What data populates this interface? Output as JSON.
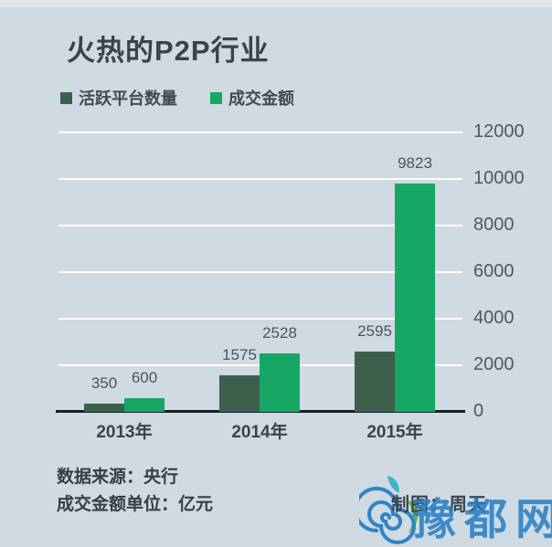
{
  "title": "火热的P2P行业",
  "legend": [
    {
      "label": "活跃平台数量",
      "color": "#3d5f4c"
    },
    {
      "label": "成交金额",
      "color": "#16a765"
    }
  ],
  "chart_data": {
    "type": "bar",
    "title": "火热的P2P行业",
    "categories": [
      "2013年",
      "2014年",
      "2015年"
    ],
    "series": [
      {
        "name": "活跃平台数量",
        "color": "#3d5f4c",
        "values": [
          350,
          1575,
          2595
        ]
      },
      {
        "name": "成交金额",
        "color": "#16a765",
        "values": [
          600,
          2528,
          9823
        ]
      }
    ],
    "ylim": [
      0,
      12000
    ],
    "yticks": [
      0,
      2000,
      4000,
      6000,
      8000,
      10000,
      12000
    ],
    "y_axis_side": "right",
    "grid": true,
    "gridline_color": "#ffffff",
    "axis_color": "#16202c",
    "legend_position": "top-left",
    "data_labels": true
  },
  "footer": {
    "source": "数据来源：央行",
    "unit": "成交金额单位：亿元",
    "credit": "制图：周天"
  },
  "watermark": {
    "text": "豫都网",
    "logo": "spiral-snail-logo",
    "color": "#2a80c5"
  },
  "colors": {
    "background": "#cfdae2",
    "top_strip": "#dee4e8",
    "title_text": "#38434d",
    "tick_text": "#4d5862"
  }
}
